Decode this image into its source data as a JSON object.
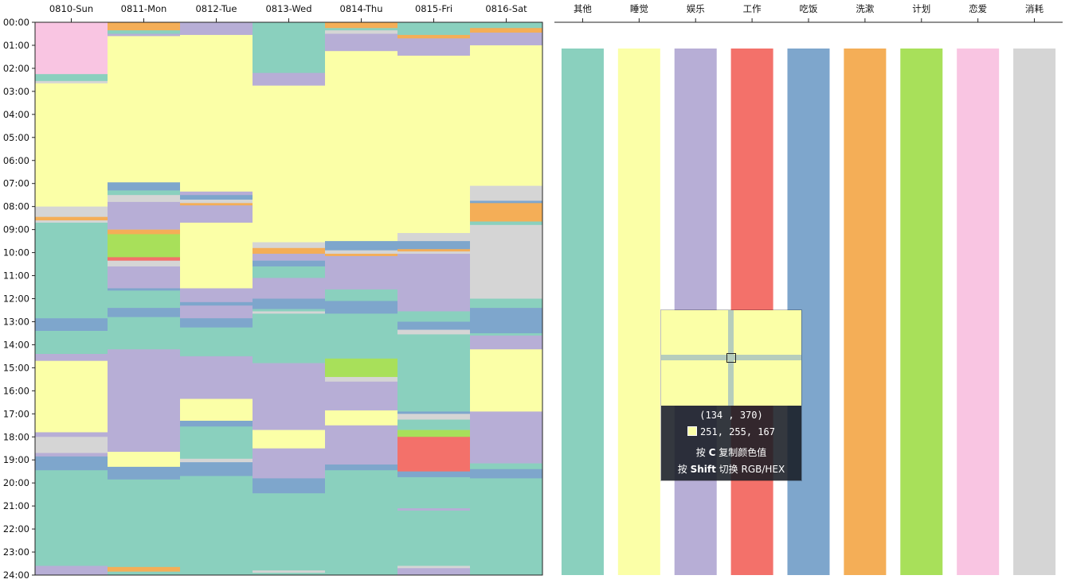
{
  "chart_data": [
    {
      "type": "heatmap",
      "title": "",
      "xlabel": "",
      "ylabel": "",
      "categories": [
        "0810-Sun",
        "0811-Mon",
        "0812-Tue",
        "0813-Wed",
        "0814-Thu",
        "0815-Fri",
        "0816-Sat"
      ],
      "y_ticks": [
        "00:00",
        "01:00",
        "02:00",
        "03:00",
        "04:00",
        "05:00",
        "06:00",
        "07:00",
        "08:00",
        "09:00",
        "10:00",
        "11:00",
        "12:00",
        "13:00",
        "14:00",
        "15:00",
        "16:00",
        "17:00",
        "18:00",
        "19:00",
        "20:00",
        "21:00",
        "22:00",
        "23:00",
        "24:00"
      ],
      "ylim": [
        0,
        24
      ],
      "y_axis_inverted": true,
      "x_axis_position": "top",
      "grid": false,
      "series": [
        {
          "day": "0810-Sun",
          "segments": [
            {
              "start": 0.0,
              "end": 2.25,
              "category": "恋爱"
            },
            {
              "start": 2.25,
              "end": 2.55,
              "category": "其他"
            },
            {
              "start": 2.55,
              "end": 2.65,
              "category": "消耗"
            },
            {
              "start": 2.65,
              "end": 8.0,
              "category": "睡觉"
            },
            {
              "start": 8.0,
              "end": 8.45,
              "category": "消耗"
            },
            {
              "start": 8.45,
              "end": 8.6,
              "category": "洗漱"
            },
            {
              "start": 8.6,
              "end": 8.7,
              "category": "消耗"
            },
            {
              "start": 8.7,
              "end": 12.85,
              "category": "其他"
            },
            {
              "start": 12.85,
              "end": 13.4,
              "category": "吃饭"
            },
            {
              "start": 13.4,
              "end": 14.4,
              "category": "其他"
            },
            {
              "start": 14.4,
              "end": 14.7,
              "category": "娱乐"
            },
            {
              "start": 14.7,
              "end": 17.8,
              "category": "睡觉"
            },
            {
              "start": 17.8,
              "end": 18.0,
              "category": "娱乐"
            },
            {
              "start": 18.0,
              "end": 18.7,
              "category": "消耗"
            },
            {
              "start": 18.7,
              "end": 18.85,
              "category": "娱乐"
            },
            {
              "start": 18.85,
              "end": 19.45,
              "category": "吃饭"
            },
            {
              "start": 19.45,
              "end": 23.6,
              "category": "其他"
            },
            {
              "start": 23.6,
              "end": 24.0,
              "category": "娱乐"
            }
          ]
        },
        {
          "day": "0811-Mon",
          "segments": [
            {
              "start": 0.0,
              "end": 0.35,
              "category": "洗漱"
            },
            {
              "start": 0.35,
              "end": 0.5,
              "category": "其他"
            },
            {
              "start": 0.5,
              "end": 0.6,
              "category": "娱乐"
            },
            {
              "start": 0.6,
              "end": 6.95,
              "category": "睡觉"
            },
            {
              "start": 6.95,
              "end": 7.3,
              "category": "吃饭"
            },
            {
              "start": 7.3,
              "end": 7.5,
              "category": "其他"
            },
            {
              "start": 7.5,
              "end": 7.8,
              "category": "消耗"
            },
            {
              "start": 7.8,
              "end": 9.0,
              "category": "娱乐"
            },
            {
              "start": 9.0,
              "end": 9.2,
              "category": "洗漱"
            },
            {
              "start": 9.2,
              "end": 10.2,
              "category": "计划"
            },
            {
              "start": 10.2,
              "end": 10.35,
              "category": "工作"
            },
            {
              "start": 10.35,
              "end": 10.6,
              "category": "消耗"
            },
            {
              "start": 10.6,
              "end": 11.55,
              "category": "娱乐"
            },
            {
              "start": 11.55,
              "end": 11.65,
              "category": "吃饭"
            },
            {
              "start": 11.65,
              "end": 12.4,
              "category": "其他"
            },
            {
              "start": 12.4,
              "end": 12.8,
              "category": "吃饭"
            },
            {
              "start": 12.8,
              "end": 14.2,
              "category": "其他"
            },
            {
              "start": 14.2,
              "end": 18.65,
              "category": "娱乐"
            },
            {
              "start": 18.65,
              "end": 19.3,
              "category": "睡觉"
            },
            {
              "start": 19.3,
              "end": 19.85,
              "category": "吃饭"
            },
            {
              "start": 19.85,
              "end": 23.65,
              "category": "其他"
            },
            {
              "start": 23.65,
              "end": 23.85,
              "category": "洗漱"
            },
            {
              "start": 23.85,
              "end": 24.0,
              "category": "其他"
            }
          ]
        },
        {
          "day": "0812-Tue",
          "segments": [
            {
              "start": 0.0,
              "end": 0.55,
              "category": "娱乐"
            },
            {
              "start": 0.55,
              "end": 7.35,
              "category": "睡觉"
            },
            {
              "start": 7.35,
              "end": 7.5,
              "category": "娱乐"
            },
            {
              "start": 7.5,
              "end": 7.7,
              "category": "吃饭"
            },
            {
              "start": 7.7,
              "end": 7.85,
              "category": "消耗"
            },
            {
              "start": 7.85,
              "end": 7.95,
              "category": "洗漱"
            },
            {
              "start": 7.95,
              "end": 8.7,
              "category": "娱乐"
            },
            {
              "start": 8.7,
              "end": 11.55,
              "category": "睡觉"
            },
            {
              "start": 11.55,
              "end": 12.15,
              "category": "娱乐"
            },
            {
              "start": 12.15,
              "end": 12.3,
              "category": "吃饭"
            },
            {
              "start": 12.3,
              "end": 12.85,
              "category": "娱乐"
            },
            {
              "start": 12.85,
              "end": 13.25,
              "category": "吃饭"
            },
            {
              "start": 13.25,
              "end": 14.5,
              "category": "其他"
            },
            {
              "start": 14.5,
              "end": 16.35,
              "category": "娱乐"
            },
            {
              "start": 16.35,
              "end": 17.3,
              "category": "睡觉"
            },
            {
              "start": 17.3,
              "end": 17.55,
              "category": "吃饭"
            },
            {
              "start": 17.55,
              "end": 18.95,
              "category": "其他"
            },
            {
              "start": 18.95,
              "end": 19.1,
              "category": "消耗"
            },
            {
              "start": 19.1,
              "end": 19.7,
              "category": "吃饭"
            },
            {
              "start": 19.7,
              "end": 24.0,
              "category": "其他"
            }
          ]
        },
        {
          "day": "0813-Wed",
          "segments": [
            {
              "start": 0.0,
              "end": 2.2,
              "category": "其他"
            },
            {
              "start": 2.2,
              "end": 2.75,
              "category": "娱乐"
            },
            {
              "start": 2.75,
              "end": 9.55,
              "category": "睡觉"
            },
            {
              "start": 9.55,
              "end": 9.8,
              "category": "消耗"
            },
            {
              "start": 9.8,
              "end": 10.05,
              "category": "洗漱"
            },
            {
              "start": 10.05,
              "end": 10.35,
              "category": "娱乐"
            },
            {
              "start": 10.35,
              "end": 10.6,
              "category": "吃饭"
            },
            {
              "start": 10.6,
              "end": 11.1,
              "category": "其他"
            },
            {
              "start": 11.1,
              "end": 11.15,
              "category": "娱乐"
            },
            {
              "start": 11.15,
              "end": 12.0,
              "category": "娱乐"
            },
            {
              "start": 12.0,
              "end": 12.45,
              "category": "吃饭"
            },
            {
              "start": 12.45,
              "end": 12.55,
              "category": "其他"
            },
            {
              "start": 12.55,
              "end": 12.65,
              "category": "消耗"
            },
            {
              "start": 12.65,
              "end": 14.8,
              "category": "其他"
            },
            {
              "start": 14.8,
              "end": 17.7,
              "category": "娱乐"
            },
            {
              "start": 17.7,
              "end": 18.5,
              "category": "睡觉"
            },
            {
              "start": 18.5,
              "end": 19.8,
              "category": "娱乐"
            },
            {
              "start": 19.8,
              "end": 20.45,
              "category": "吃饭"
            },
            {
              "start": 20.45,
              "end": 23.8,
              "category": "其他"
            },
            {
              "start": 23.8,
              "end": 23.9,
              "category": "消耗"
            },
            {
              "start": 23.9,
              "end": 24.0,
              "category": "其他"
            }
          ]
        },
        {
          "day": "0814-Thu",
          "segments": [
            {
              "start": 0.0,
              "end": 0.25,
              "category": "洗漱"
            },
            {
              "start": 0.25,
              "end": 0.35,
              "category": "其他"
            },
            {
              "start": 0.35,
              "end": 0.5,
              "category": "消耗"
            },
            {
              "start": 0.5,
              "end": 1.25,
              "category": "娱乐"
            },
            {
              "start": 1.25,
              "end": 9.5,
              "category": "睡觉"
            },
            {
              "start": 9.5,
              "end": 9.9,
              "category": "吃饭"
            },
            {
              "start": 9.9,
              "end": 10.05,
              "category": "消耗"
            },
            {
              "start": 10.05,
              "end": 10.15,
              "category": "洗漱"
            },
            {
              "start": 10.15,
              "end": 11.6,
              "category": "娱乐"
            },
            {
              "start": 11.6,
              "end": 12.1,
              "category": "其他"
            },
            {
              "start": 12.1,
              "end": 12.65,
              "category": "吃饭"
            },
            {
              "start": 12.65,
              "end": 14.6,
              "category": "其他"
            },
            {
              "start": 14.6,
              "end": 15.4,
              "category": "计划"
            },
            {
              "start": 15.4,
              "end": 15.6,
              "category": "消耗"
            },
            {
              "start": 15.6,
              "end": 16.85,
              "category": "娱乐"
            },
            {
              "start": 16.85,
              "end": 17.5,
              "category": "睡觉"
            },
            {
              "start": 17.5,
              "end": 19.2,
              "category": "娱乐"
            },
            {
              "start": 19.2,
              "end": 19.45,
              "category": "吃饭"
            },
            {
              "start": 19.45,
              "end": 24.0,
              "category": "其他"
            }
          ]
        },
        {
          "day": "0815-Fri",
          "segments": [
            {
              "start": 0.0,
              "end": 0.55,
              "category": "其他"
            },
            {
              "start": 0.55,
              "end": 0.7,
              "category": "洗漱"
            },
            {
              "start": 0.7,
              "end": 1.45,
              "category": "娱乐"
            },
            {
              "start": 1.45,
              "end": 9.15,
              "category": "睡觉"
            },
            {
              "start": 9.15,
              "end": 9.5,
              "category": "消耗"
            },
            {
              "start": 9.5,
              "end": 9.85,
              "category": "吃饭"
            },
            {
              "start": 9.85,
              "end": 9.95,
              "category": "洗漱"
            },
            {
              "start": 9.95,
              "end": 10.05,
              "category": "消耗"
            },
            {
              "start": 10.05,
              "end": 12.55,
              "category": "娱乐"
            },
            {
              "start": 12.55,
              "end": 13.0,
              "category": "其他"
            },
            {
              "start": 13.0,
              "end": 13.35,
              "category": "吃饭"
            },
            {
              "start": 13.35,
              "end": 13.55,
              "category": "消耗"
            },
            {
              "start": 13.55,
              "end": 16.9,
              "category": "其他"
            },
            {
              "start": 16.9,
              "end": 17.0,
              "category": "吃饭"
            },
            {
              "start": 17.0,
              "end": 17.25,
              "category": "消耗"
            },
            {
              "start": 17.25,
              "end": 17.7,
              "category": "其他"
            },
            {
              "start": 17.7,
              "end": 18.0,
              "category": "计划"
            },
            {
              "start": 18.0,
              "end": 19.5,
              "category": "工作"
            },
            {
              "start": 19.5,
              "end": 19.75,
              "category": "吃饭"
            },
            {
              "start": 19.75,
              "end": 21.1,
              "category": "其他"
            },
            {
              "start": 21.1,
              "end": 21.2,
              "category": "娱乐"
            },
            {
              "start": 21.2,
              "end": 23.6,
              "category": "其他"
            },
            {
              "start": 23.6,
              "end": 23.7,
              "category": "消耗"
            },
            {
              "start": 23.7,
              "end": 24.0,
              "category": "娱乐"
            }
          ]
        },
        {
          "day": "0816-Sat",
          "segments": [
            {
              "start": 0.0,
              "end": 0.25,
              "category": "其他"
            },
            {
              "start": 0.25,
              "end": 0.45,
              "category": "洗漱"
            },
            {
              "start": 0.45,
              "end": 1.0,
              "category": "娱乐"
            },
            {
              "start": 1.0,
              "end": 7.1,
              "category": "睡觉"
            },
            {
              "start": 7.1,
              "end": 7.75,
              "category": "消耗"
            },
            {
              "start": 7.75,
              "end": 7.85,
              "category": "吃饭"
            },
            {
              "start": 7.85,
              "end": 8.65,
              "category": "洗漱"
            },
            {
              "start": 8.65,
              "end": 8.8,
              "category": "其他"
            },
            {
              "start": 8.8,
              "end": 12.0,
              "category": "消耗"
            },
            {
              "start": 12.0,
              "end": 12.4,
              "category": "其他"
            },
            {
              "start": 12.4,
              "end": 13.5,
              "category": "吃饭"
            },
            {
              "start": 13.5,
              "end": 13.6,
              "category": "其他"
            },
            {
              "start": 13.6,
              "end": 14.2,
              "category": "娱乐"
            },
            {
              "start": 14.2,
              "end": 16.9,
              "category": "睡觉"
            },
            {
              "start": 16.9,
              "end": 19.15,
              "category": "娱乐"
            },
            {
              "start": 19.15,
              "end": 19.4,
              "category": "其他"
            },
            {
              "start": 19.4,
              "end": 19.8,
              "category": "吃饭"
            },
            {
              "start": 19.8,
              "end": 24.0,
              "category": "其他"
            }
          ]
        }
      ]
    },
    {
      "type": "bar",
      "title": "",
      "xlabel": "",
      "ylabel": "",
      "role": "color-legend",
      "x_axis_position": "top",
      "categories": [
        "其他",
        "睡觉",
        "娱乐",
        "工作",
        "吃饭",
        "洗漱",
        "计划",
        "恋爱",
        "消耗"
      ],
      "colors": {
        "其他": "#8ad0be",
        "睡觉": "#fbffa7",
        "娱乐": "#b7aed6",
        "工作": "#f3716a",
        "吃饭": "#7ea6cc",
        "洗漱": "#f4ae57",
        "计划": "#a8e05a",
        "恋爱": "#f9c5e2",
        "消耗": "#d5d5d5"
      }
    }
  ],
  "color_picker": {
    "coords_text": "(134 , 370)",
    "color_value": "251, 255, 167",
    "swatch_color": "#fbffa7",
    "magnifier_color": "#fbffa7",
    "hint_copy_prefix": "按 ",
    "hint_copy_key": "C",
    "hint_copy_suffix": " 复制颜色值",
    "hint_toggle_prefix": "按 ",
    "hint_toggle_key": "Shift",
    "hint_toggle_suffix": " 切换 RGB/HEX"
  }
}
